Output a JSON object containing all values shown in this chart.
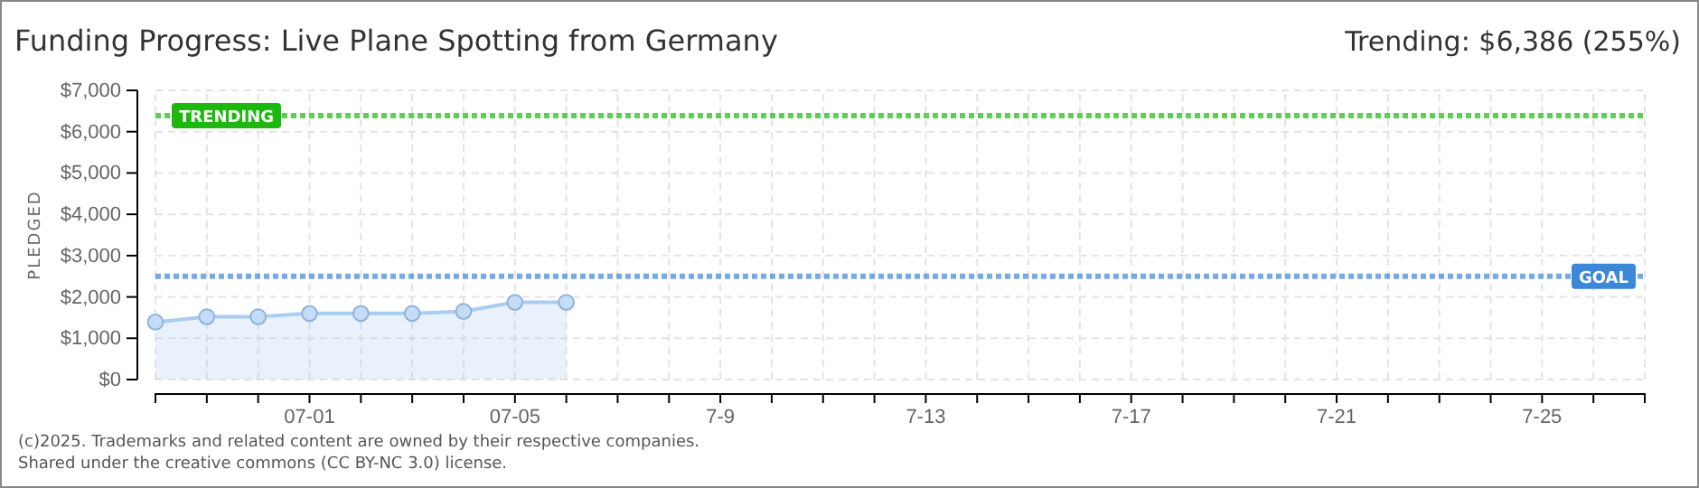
{
  "chart_data": {
    "type": "area",
    "title": "Funding Progress: Live Plane Spotting from Germany",
    "subtitle": "Trending: $6,386 (255%)",
    "ylabel": "PLEDGED",
    "annotations": [
      "(c)2025. Trademarks and related content are owned by their respective companies.",
      "Shared under the creative commons (CC BY-NC 3.0) license."
    ],
    "x": [
      "--06-28",
      "--06-29",
      "--06-30",
      "--07-01",
      "--07-02",
      "--07-03",
      "--07-04",
      "--07-05",
      "--07-06"
    ],
    "series": [
      {
        "color": "#a9cdf3",
        "values": [
          1390,
          1520,
          1520,
          1600,
          1600,
          1600,
          1650,
          1870,
          1870
        ]
      }
    ],
    "marker": "circle",
    "grid": true,
    "xlim": [
      "--06-28",
      "--07-27"
    ],
    "xticks": [
      {
        "value": "--06-28",
        "label": null
      },
      {
        "value": "--06-29",
        "label": null
      },
      {
        "value": "--06-30",
        "label": null
      },
      {
        "value": "--07-01",
        "label": "07-01"
      },
      {
        "value": "--07-02",
        "label": null
      },
      {
        "value": "--07-03",
        "label": null
      },
      {
        "value": "--07-04",
        "label": null
      },
      {
        "value": "--07-05",
        "label": "07-05"
      },
      {
        "value": "--07-06",
        "label": null
      },
      {
        "value": "--07-07",
        "label": null
      },
      {
        "value": "--07-08",
        "label": null
      },
      {
        "value": "--07-09",
        "label": "7-9"
      },
      {
        "value": "--07-10",
        "label": null
      },
      {
        "value": "--07-11",
        "label": null
      },
      {
        "value": "--07-12",
        "label": null
      },
      {
        "value": "--07-13",
        "label": "7-13"
      },
      {
        "value": "--07-14",
        "label": null
      },
      {
        "value": "--07-15",
        "label": null
      },
      {
        "value": "--07-16",
        "label": null
      },
      {
        "value": "--07-17",
        "label": "7-17"
      },
      {
        "value": "--07-18",
        "label": null
      },
      {
        "value": "--07-19",
        "label": null
      },
      {
        "value": "--07-20",
        "label": null
      },
      {
        "value": "--07-21",
        "label": "7-21"
      },
      {
        "value": "--07-22",
        "label": null
      },
      {
        "value": "--07-23",
        "label": null
      },
      {
        "value": "--07-24",
        "label": null
      },
      {
        "value": "--07-25",
        "label": "7-25"
      },
      {
        "value": "--07-26",
        "label": null
      },
      {
        "value": "--07-27",
        "label": null
      }
    ],
    "ylim": [
      0,
      7000
    ],
    "yticks": [
      {
        "value": 0,
        "label": "$0"
      },
      {
        "value": 1000,
        "label": "$1,000"
      },
      {
        "value": 2000,
        "label": "$2,000"
      },
      {
        "value": 3000,
        "label": "$3,000"
      },
      {
        "value": 4000,
        "label": "$4,000"
      },
      {
        "value": 5000,
        "label": "$5,000"
      },
      {
        "value": 6000,
        "label": "$6,000"
      },
      {
        "value": 7000,
        "label": "$7,000"
      }
    ],
    "ref_lines": [
      {
        "axis": "y",
        "value": 6386,
        "label": "TRENDING",
        "color": "#1db80e",
        "line_style": "dotted"
      },
      {
        "axis": "y",
        "value": 2500,
        "label": "GOAL",
        "color": "#3b88d8",
        "line_style": "dotted"
      }
    ]
  }
}
